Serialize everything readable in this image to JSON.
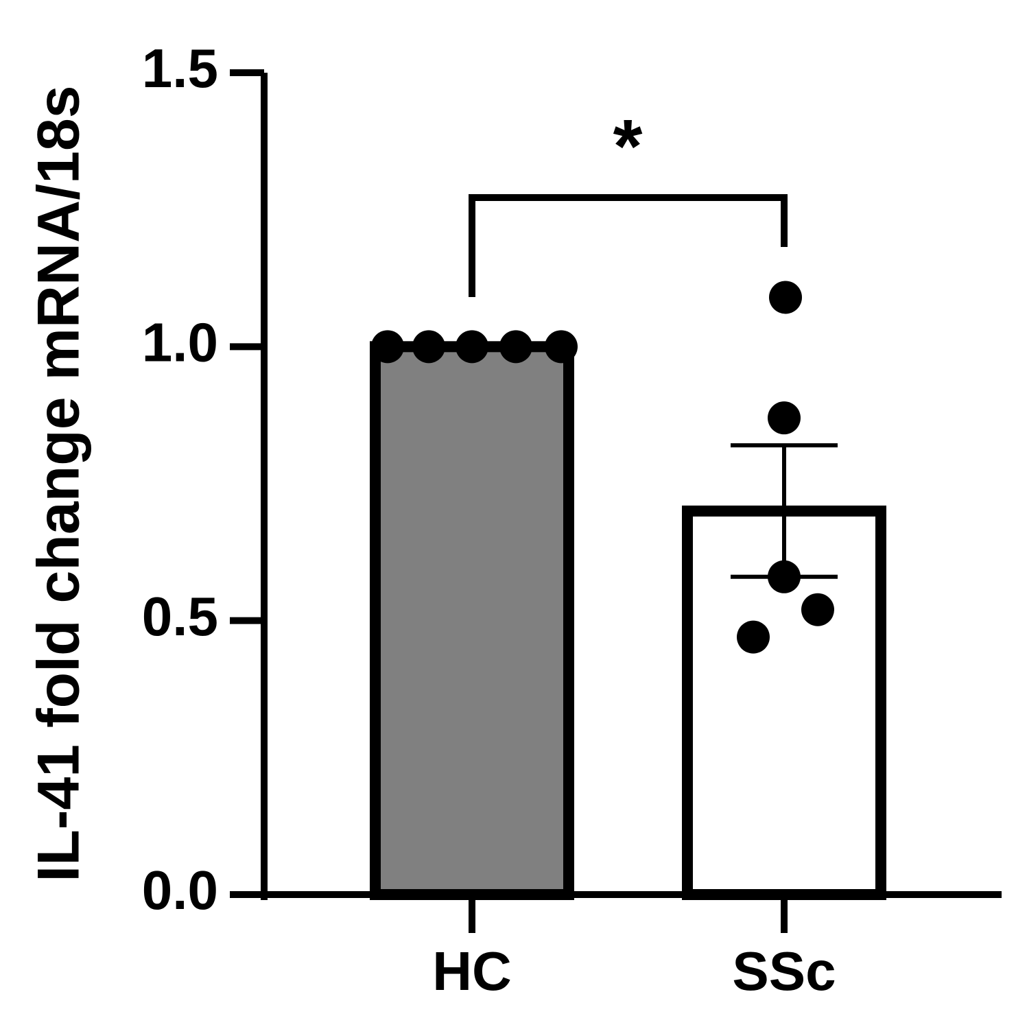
{
  "chart_data": {
    "type": "bar",
    "y_label": "IL-41 fold change mRNA/18s",
    "categories": [
      "HC",
      "SSc"
    ],
    "values": [
      1.0,
      0.7
    ],
    "errors": [
      null,
      0.12
    ],
    "points": [
      [
        1.0,
        1.0,
        1.0,
        1.0,
        1.0
      ],
      [
        1.09,
        0.87,
        0.58,
        0.52,
        0.47
      ]
    ],
    "colors": [
      "#808080",
      "#ffffff"
    ],
    "ylim": [
      0,
      1.5
    ],
    "yticks": [
      {
        "value": 0,
        "label": "0.0"
      },
      {
        "value": 0.5,
        "label": "0.5"
      },
      {
        "value": 1,
        "label": "1.0"
      },
      {
        "value": 1.5,
        "label": "1.5"
      }
    ],
    "annotation": "*"
  }
}
